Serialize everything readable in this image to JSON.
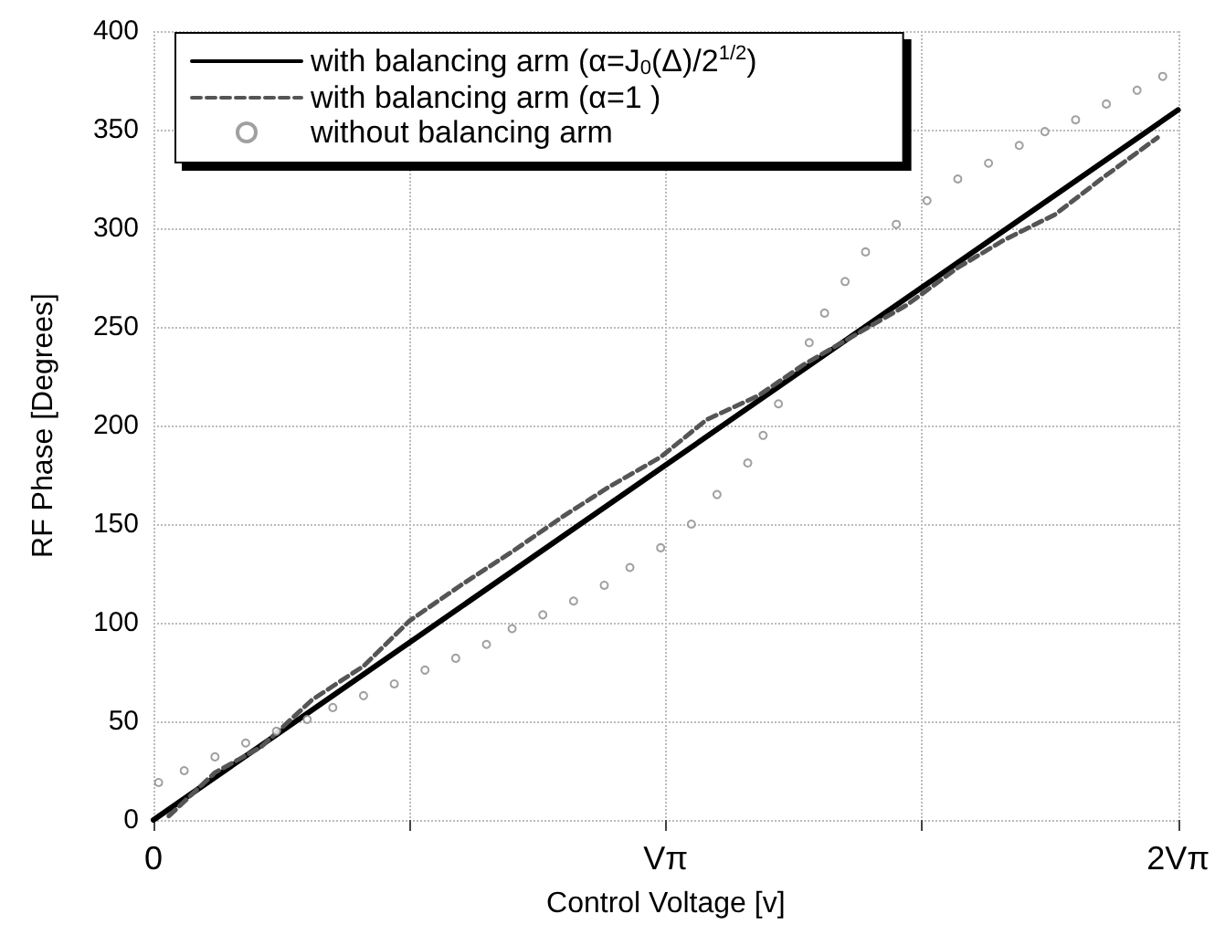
{
  "chart_data": {
    "type": "line",
    "xlabel": "Control Voltage [v]",
    "ylabel": "RF Phase [Degrees]",
    "xlim": [
      0,
      2
    ],
    "xticks": [
      0,
      {
        "value": 0.5,
        "label": null
      },
      {
        "value": 1,
        "label": "Vπ"
      },
      {
        "value": 1.5,
        "label": null
      },
      {
        "value": 2,
        "label": "2Vπ"
      }
    ],
    "ylim": [
      0,
      400
    ],
    "yticks": [
      0,
      50,
      100,
      150,
      200,
      250,
      300,
      350,
      400
    ],
    "grid": true,
    "legend": "top left",
    "series": [
      {
        "name": "with balancing arm (α=J$_{0}$(Δ)/2$^{1/2}$)",
        "color": "#000000",
        "line_style": "solid",
        "marker": "none",
        "x": [
          0,
          2
        ],
        "values": [
          0,
          360
        ]
      },
      {
        "name": "with balancing arm (α=1 )",
        "color": "#555555",
        "line_style": "dashed",
        "marker": "none",
        "x": [
          0.03,
          0.12,
          0.21,
          0.31,
          0.41,
          0.5,
          0.6,
          0.7,
          0.8,
          0.89,
          0.99,
          1.08,
          1.18,
          1.27,
          1.37,
          1.47,
          1.57,
          1.66,
          1.76,
          1.85,
          1.96
        ],
        "values": [
          2,
          24,
          37,
          61,
          78,
          101,
          119,
          136,
          154,
          169,
          184,
          203,
          215,
          231,
          246,
          261,
          280,
          294,
          307,
          325,
          346
        ]
      },
      {
        "name": "without balancing arm",
        "color": "#888888",
        "type": "scatter",
        "marker": "circle",
        "x": [
          0.01,
          0.06,
          0.12,
          0.18,
          0.24,
          0.3,
          0.35,
          0.41,
          0.47,
          0.53,
          0.59,
          0.65,
          0.7,
          0.76,
          0.82,
          0.88,
          0.93,
          0.99,
          1.05,
          1.1,
          1.16,
          1.19,
          1.22,
          1.28,
          1.31,
          1.35,
          1.39,
          1.45,
          1.51,
          1.57,
          1.63,
          1.69,
          1.74,
          1.8,
          1.86,
          1.92,
          1.97
        ],
        "values": [
          19,
          25,
          32,
          39,
          45,
          51,
          57,
          63,
          69,
          76,
          82,
          89,
          97,
          104,
          111,
          119,
          128,
          138,
          150,
          165,
          181,
          195,
          211,
          242,
          257,
          273,
          288,
          302,
          314,
          325,
          333,
          342,
          349,
          355,
          363,
          370,
          377
        ]
      }
    ]
  }
}
